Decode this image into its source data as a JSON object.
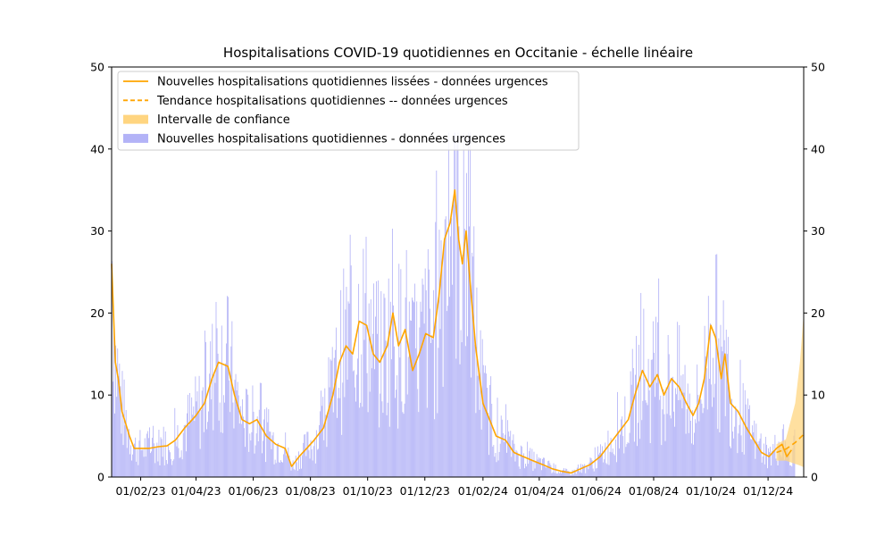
{
  "chart_data": {
    "type": "bar",
    "title": "Hospitalisations COVID-19 quotidiennes en Occitanie - échelle linéaire",
    "xlabel": "",
    "ylabel": "",
    "ylim": [
      0,
      50
    ],
    "yticks": [
      0,
      10,
      20,
      30,
      40,
      50
    ],
    "secondary_y_axis": true,
    "x_start": "2023-01-01",
    "x_end": "2025-01-08",
    "forecast_start": "2024-12-10",
    "xticks": [
      {
        "date": "2023-02-01",
        "label": "01/02/23"
      },
      {
        "date": "2023-04-01",
        "label": "01/04/23"
      },
      {
        "date": "2023-06-01",
        "label": "01/06/23"
      },
      {
        "date": "2023-08-01",
        "label": "01/08/23"
      },
      {
        "date": "2023-10-01",
        "label": "01/10/23"
      },
      {
        "date": "2023-12-01",
        "label": "01/12/23"
      },
      {
        "date": "2024-02-01",
        "label": "01/02/24"
      },
      {
        "date": "2024-04-01",
        "label": "01/04/24"
      },
      {
        "date": "2024-06-01",
        "label": "01/06/24"
      },
      {
        "date": "2024-08-01",
        "label": "01/08/24"
      },
      {
        "date": "2024-10-01",
        "label": "01/10/24"
      },
      {
        "date": "2024-12-01",
        "label": "01/12/24"
      }
    ],
    "legend_position": "top-left",
    "colors": {
      "smoothed": "#ffa500",
      "trend": "#ffa500",
      "confidence": "#ffd580",
      "bars": "#b3b3f7"
    },
    "series": [
      {
        "name": "Nouvelles hospitalisations quotidiennes lissées - données urgences",
        "kind": "line",
        "points": [
          [
            "2023-01-01",
            26
          ],
          [
            "2023-01-03",
            20
          ],
          [
            "2023-01-05",
            14
          ],
          [
            "2023-01-08",
            12
          ],
          [
            "2023-01-12",
            8
          ],
          [
            "2023-01-16",
            6.5
          ],
          [
            "2023-01-20",
            5
          ],
          [
            "2023-01-25",
            3.5
          ],
          [
            "2023-02-01",
            3.5
          ],
          [
            "2023-02-10",
            3.5
          ],
          [
            "2023-02-20",
            3.7
          ],
          [
            "2023-03-01",
            3.8
          ],
          [
            "2023-03-10",
            4.5
          ],
          [
            "2023-03-20",
            6
          ],
          [
            "2023-04-01",
            7.5
          ],
          [
            "2023-04-10",
            9
          ],
          [
            "2023-04-18",
            12
          ],
          [
            "2023-04-25",
            14
          ],
          [
            "2023-05-05",
            13.5
          ],
          [
            "2023-05-12",
            10
          ],
          [
            "2023-05-20",
            7
          ],
          [
            "2023-05-28",
            6.5
          ],
          [
            "2023-06-05",
            7
          ],
          [
            "2023-06-15",
            5
          ],
          [
            "2023-06-25",
            4
          ],
          [
            "2023-07-05",
            3.5
          ],
          [
            "2023-07-12",
            1.3
          ],
          [
            "2023-07-20",
            2.5
          ],
          [
            "2023-07-28",
            3.5
          ],
          [
            "2023-08-05",
            4.5
          ],
          [
            "2023-08-15",
            6
          ],
          [
            "2023-08-25",
            10
          ],
          [
            "2023-09-01",
            14
          ],
          [
            "2023-09-08",
            16
          ],
          [
            "2023-09-15",
            15
          ],
          [
            "2023-09-22",
            19
          ],
          [
            "2023-09-30",
            18.5
          ],
          [
            "2023-10-07",
            15
          ],
          [
            "2023-10-14",
            14
          ],
          [
            "2023-10-22",
            16
          ],
          [
            "2023-10-28",
            20
          ],
          [
            "2023-11-03",
            16
          ],
          [
            "2023-11-10",
            18
          ],
          [
            "2023-11-18",
            13
          ],
          [
            "2023-11-25",
            15
          ],
          [
            "2023-12-02",
            17.5
          ],
          [
            "2023-12-10",
            17
          ],
          [
            "2023-12-16",
            22
          ],
          [
            "2023-12-22",
            29
          ],
          [
            "2023-12-28",
            31
          ],
          [
            "2024-01-02",
            35
          ],
          [
            "2024-01-06",
            29
          ],
          [
            "2024-01-10",
            26
          ],
          [
            "2024-01-14",
            30
          ],
          [
            "2024-01-18",
            24
          ],
          [
            "2024-01-24",
            16
          ],
          [
            "2024-02-01",
            9
          ],
          [
            "2024-02-08",
            7
          ],
          [
            "2024-02-15",
            5
          ],
          [
            "2024-02-25",
            4.5
          ],
          [
            "2024-03-05",
            3
          ],
          [
            "2024-03-15",
            2.5
          ],
          [
            "2024-03-25",
            2
          ],
          [
            "2024-04-05",
            1.5
          ],
          [
            "2024-04-15",
            1
          ],
          [
            "2024-04-25",
            0.7
          ],
          [
            "2024-05-05",
            0.5
          ],
          [
            "2024-05-15",
            1
          ],
          [
            "2024-05-25",
            1.5
          ],
          [
            "2024-06-05",
            2.5
          ],
          [
            "2024-06-15",
            4
          ],
          [
            "2024-06-25",
            5.5
          ],
          [
            "2024-07-05",
            7
          ],
          [
            "2024-07-12",
            10
          ],
          [
            "2024-07-20",
            13
          ],
          [
            "2024-07-28",
            11
          ],
          [
            "2024-08-05",
            12.5
          ],
          [
            "2024-08-12",
            10
          ],
          [
            "2024-08-20",
            12
          ],
          [
            "2024-08-28",
            11
          ],
          [
            "2024-09-05",
            9
          ],
          [
            "2024-09-12",
            7.5
          ],
          [
            "2024-09-18",
            9
          ],
          [
            "2024-09-24",
            12
          ],
          [
            "2024-10-01",
            18.5
          ],
          [
            "2024-10-06",
            17
          ],
          [
            "2024-10-12",
            12
          ],
          [
            "2024-10-16",
            15
          ],
          [
            "2024-10-22",
            9
          ],
          [
            "2024-10-30",
            8
          ],
          [
            "2024-11-08",
            6
          ],
          [
            "2024-11-16",
            4.5
          ],
          [
            "2024-11-24",
            3
          ],
          [
            "2024-12-02",
            2.5
          ],
          [
            "2024-12-10",
            3.5
          ],
          [
            "2024-12-16",
            4
          ],
          [
            "2024-12-21",
            2.5
          ],
          [
            "2024-12-26",
            3.3
          ]
        ]
      },
      {
        "name": "Tendance hospitalisations quotidiennes -- données urgences",
        "kind": "dashed-line",
        "points": [
          [
            "2024-12-10",
            3.0
          ],
          [
            "2024-12-20",
            3.4
          ],
          [
            "2024-12-30",
            4.2
          ],
          [
            "2025-01-08",
            5.2
          ]
        ]
      },
      {
        "name": "Intervalle de confiance",
        "kind": "band",
        "points": [
          [
            "2024-12-10",
            2.0,
            4.0
          ],
          [
            "2024-12-20",
            2.0,
            4.6
          ],
          [
            "2024-12-30",
            1.6,
            9.0
          ],
          [
            "2025-01-04",
            1.4,
            14.0
          ],
          [
            "2025-01-08",
            1.2,
            20.0
          ]
        ]
      },
      {
        "name": "Nouvelles hospitalisations quotidiennes - données urgences",
        "kind": "bars",
        "note": "daily counts, one bar per day"
      }
    ]
  }
}
